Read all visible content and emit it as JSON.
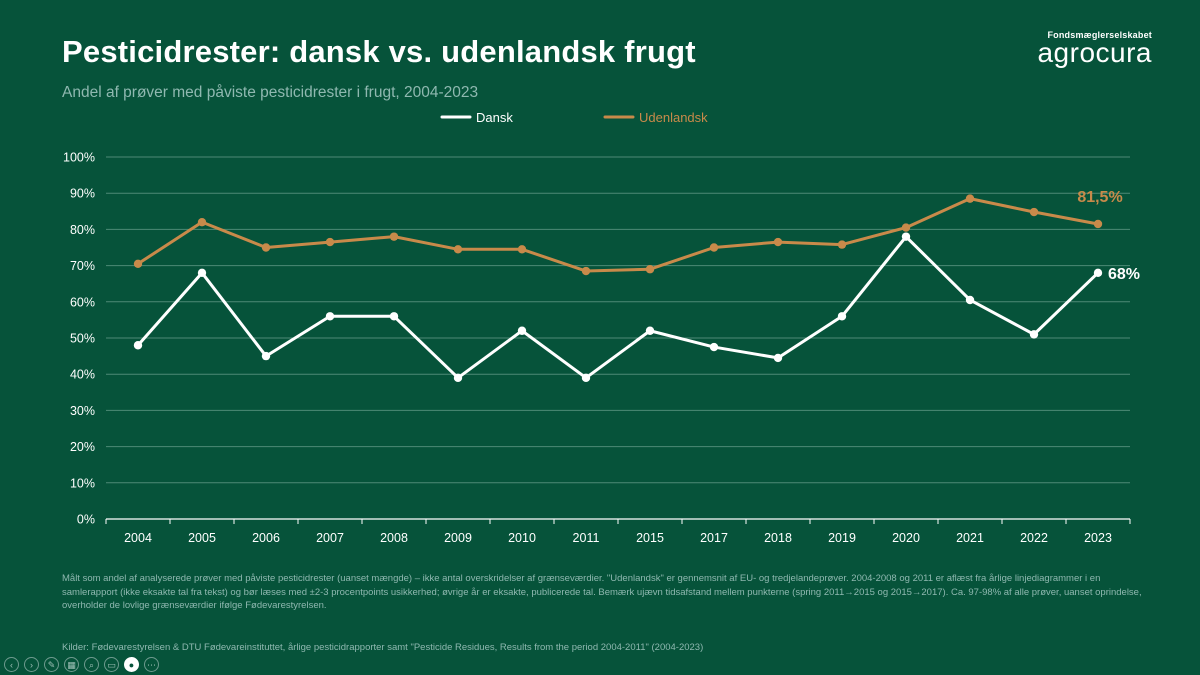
{
  "title": "Pesticidrester: dansk vs. udenlandsk frugt",
  "subtitle": "Andel af prøver med påviste pesticidrester i frugt, 2004-2023",
  "brand": {
    "tagline": "Fondsmæglerselskabet",
    "name": "agrocura"
  },
  "colors": {
    "background": "#06533a",
    "dansk": "#ffffff",
    "udenlandsk": "#c88a4a",
    "grid": "#4e8a76",
    "axis": "#ffffff",
    "muted_text": "#8fb8b0"
  },
  "chart_data": {
    "type": "line",
    "categories": [
      "2004",
      "2005",
      "2006",
      "2007",
      "2008",
      "2009",
      "2010",
      "2011",
      "2015",
      "2017",
      "2018",
      "2019",
      "2020",
      "2021",
      "2022",
      "2023"
    ],
    "series": [
      {
        "name": "Dansk",
        "color": "#ffffff",
        "values": [
          48,
          68,
          45,
          56,
          56,
          39,
          52,
          39,
          52,
          47.5,
          44.5,
          56,
          78,
          60.5,
          51,
          68
        ]
      },
      {
        "name": "Udenlandsk",
        "color": "#c88a4a",
        "values": [
          70.5,
          82,
          75,
          76.5,
          78,
          74.5,
          74.5,
          68.5,
          69,
          75,
          76.5,
          75.8,
          80.5,
          88.5,
          84.8,
          81.5
        ]
      }
    ],
    "ylim": [
      0,
      100
    ],
    "yticks": [
      0,
      10,
      20,
      30,
      40,
      50,
      60,
      70,
      80,
      90,
      100
    ],
    "ytick_labels": [
      "0%",
      "10%",
      "20%",
      "30%",
      "40%",
      "50%",
      "60%",
      "70%",
      "80%",
      "90%",
      "100%"
    ],
    "grid": true,
    "legend_position": "top-center",
    "annotations": [
      {
        "series": "Udenlandsk",
        "category": "2023",
        "text": "81,5%"
      },
      {
        "series": "Dansk",
        "category": "2023",
        "text": "68%"
      }
    ]
  },
  "note": "Målt som andel af analyserede prøver med påviste pesticidrester (uanset mængde) – ikke antal overskridelser af grænseværdier. \"Udenlandsk\" er gennemsnit af EU- og tredjelandeprøver. 2004-2008 og 2011 er aflæst fra årlige linjediagrammer i en samlerapport (ikke eksakte tal fra tekst) og bør læses med ±2-3 procentpoints usikkerhed; øvrige år er eksakte, publicerede tal. Bemærk ujævn tidsafstand mellem punkterne (spring 2011→2015 og 2015→2017). Ca. 97-98% af alle prøver, uanset oprindelse, overholder de lovlige grænseværdier ifølge Fødevarestyrelsen.",
  "source": "Kilder: Fødevarestyrelsen & DTU Fødevareinstituttet, årlige pesticidrapporter samt \"Pesticide Residues, Results from the period 2004-2011\" (2004-2023)",
  "toolbar": [
    {
      "name": "previous-slide-icon",
      "glyph": "‹"
    },
    {
      "name": "next-slide-icon",
      "glyph": "›"
    },
    {
      "name": "pen-icon",
      "glyph": "✎"
    },
    {
      "name": "slides-grid-icon",
      "glyph": "▦"
    },
    {
      "name": "zoom-icon",
      "glyph": "⌕"
    },
    {
      "name": "subtitles-icon",
      "glyph": "▭"
    },
    {
      "name": "camera-icon",
      "glyph": "●"
    },
    {
      "name": "more-options-icon",
      "glyph": "⋯"
    }
  ]
}
